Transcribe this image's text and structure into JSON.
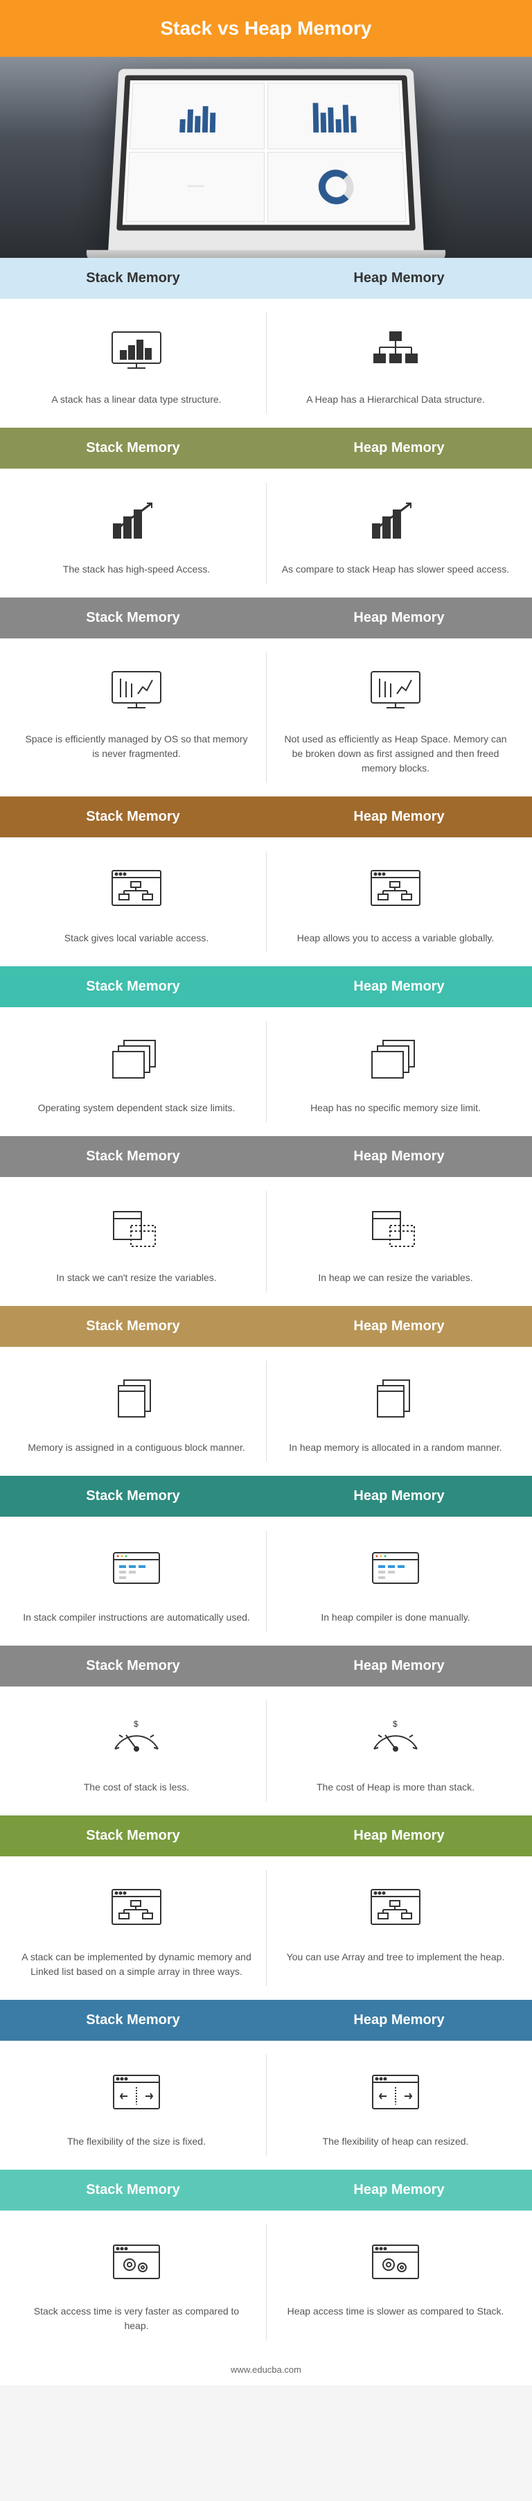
{
  "title": "Stack vs Heap Memory",
  "labels": {
    "stack": "Stack Memory",
    "heap": "Heap Memory"
  },
  "rows": [
    {
      "color": "blue",
      "stack": "A stack has a linear data type structure.",
      "heap": "A Heap has a Hierarchical Data structure.",
      "icons": [
        "monitor-chart",
        "hierarchy"
      ]
    },
    {
      "color": "olive",
      "stack": "The stack has high-speed Access.",
      "heap": "As compare to stack Heap has slower speed access.",
      "icons": [
        "chart-up",
        "chart-up"
      ]
    },
    {
      "color": "gray",
      "stack": "Space is efficiently managed by OS so that memory is never fragmented.",
      "heap": "Not used as efficiently as Heap Space. Memory can be broken down as first assigned and then freed memory blocks.",
      "icons": [
        "monitor-bars",
        "monitor-bars"
      ]
    },
    {
      "color": "brown",
      "stack": "Stack gives local variable access.",
      "heap": "Heap allows you to access a variable globally.",
      "icons": [
        "window-tree",
        "window-tree"
      ]
    },
    {
      "color": "teal",
      "stack": "Operating system dependent stack size limits.",
      "heap": "Heap has no specific memory size limit.",
      "icons": [
        "windows-stack",
        "windows-stack"
      ]
    },
    {
      "color": "gray",
      "stack": "In stack we can't resize the variables.",
      "heap": "In heap we can resize the variables.",
      "icons": [
        "resize-window",
        "resize-window"
      ]
    },
    {
      "color": "tan",
      "stack": "Memory is assigned in a contiguous block manner.",
      "heap": "In heap memory is allocated in a random manner.",
      "icons": [
        "doc-stack",
        "doc-stack"
      ]
    },
    {
      "color": "darkteal",
      "stack": "In stack compiler instructions are automatically used.",
      "heap": "In heap compiler is done manually.",
      "icons": [
        "window-grid",
        "window-grid"
      ]
    },
    {
      "color": "gray",
      "stack": "The cost of stack is less.",
      "heap": "The cost of Heap is more than stack.",
      "icons": [
        "gauge",
        "gauge"
      ]
    },
    {
      "color": "green",
      "stack": "A stack can be implemented by dynamic memory and Linked list based on a simple array in three ways.",
      "heap": "You can use Array and tree to implement the heap.",
      "icons": [
        "window-tree",
        "window-tree"
      ]
    },
    {
      "color": "steelblue",
      "stack": "The flexibility of the size is fixed.",
      "heap": "The flexibility of heap can resized.",
      "icons": [
        "window-arrows",
        "window-arrows"
      ]
    },
    {
      "color": "mint",
      "stack": "Stack access time is very faster as compared to heap.",
      "heap": "Heap access time is slower as compared to Stack.",
      "icons": [
        "window-gears",
        "window-gears"
      ]
    }
  ],
  "footer": "www.educba.com"
}
